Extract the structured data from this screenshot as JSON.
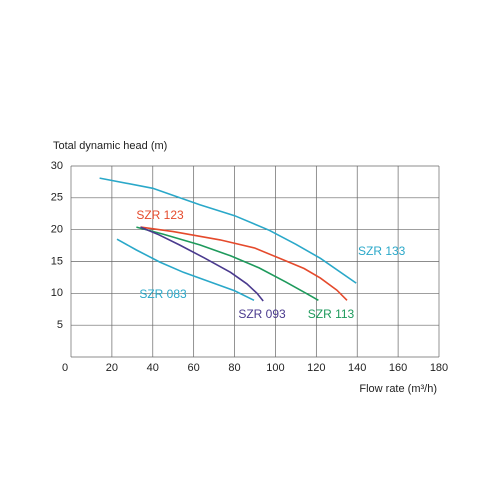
{
  "chart_data": {
    "type": "line",
    "y_label": "Total dynamic head (m)",
    "x_label": "Flow rate (m³/h)",
    "xlim": [
      0,
      180
    ],
    "xticks": [
      0,
      20,
      40,
      60,
      80,
      100,
      120,
      140,
      160,
      180
    ],
    "ylim": [
      0,
      30
    ],
    "yticks": [
      5,
      10,
      15,
      20,
      25,
      30
    ],
    "grid": true,
    "series": [
      {
        "name": "SZR 133",
        "color": "#2aa8c9",
        "x": [
          14,
          40,
          63,
          80,
          97,
          110,
          122,
          139.5
        ],
        "values": [
          28.1,
          26.5,
          23.9,
          22.2,
          19.9,
          17.7,
          15.5,
          11.6
        ]
      },
      {
        "name": "SZR 123",
        "color": "#e54a2c",
        "x": [
          34,
          50,
          73,
          90,
          102,
          114,
          122,
          130,
          135
        ],
        "values": [
          20.4,
          19.7,
          18.4,
          17.1,
          15.5,
          13.9,
          12.4,
          10.5,
          8.9
        ]
      },
      {
        "name": "SZR 113",
        "color": "#1e9a5c",
        "x": [
          32,
          45,
          63,
          78,
          92,
          105,
          115,
          121
        ],
        "values": [
          20.4,
          19.3,
          17.6,
          15.9,
          14,
          11.8,
          10,
          8.9
        ]
      },
      {
        "name": "SZR 093",
        "color": "#4a3a8e",
        "x": [
          34,
          43,
          53,
          65,
          78,
          86,
          91,
          94
        ],
        "values": [
          20.4,
          19.2,
          17.6,
          15.6,
          13.3,
          11.5,
          10,
          8.8
        ]
      },
      {
        "name": "SZR 083",
        "color": "#2aa8c9",
        "x": [
          22.5,
          32,
          43.5,
          55,
          68,
          80,
          89.5
        ],
        "values": [
          18.5,
          16.8,
          14.9,
          13.3,
          11.8,
          10.4,
          8.9
        ]
      }
    ]
  }
}
